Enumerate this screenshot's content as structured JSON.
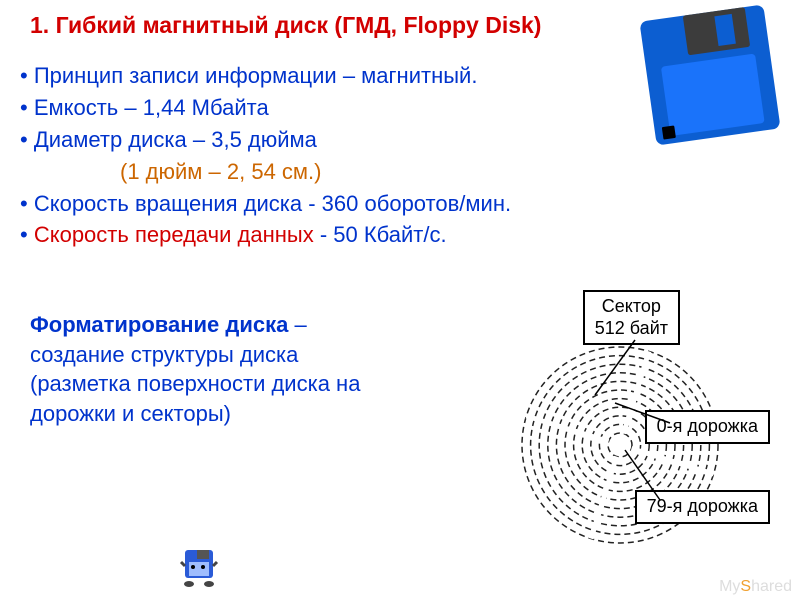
{
  "title": "1. Гибкий магнитный диск (ГМД, Floppy Disk)",
  "bullets": {
    "b1": "Принцип записи информации – магнитный.",
    "b2": "Емкость – 1,44 Мбайта",
    "b3": "Диаметр диска – 3,5 дюйма",
    "b3_indent": "(1 дюйм – 2, 54 см.)",
    "b4": "Скорость вращения диска - 360 оборотов/мин.",
    "b5_head": "Скорость передачи данных",
    "b5_tail": " - 50 Кбайт/с."
  },
  "definition": {
    "bold": "Форматирование диска",
    "rest": " – создание структуры диска (разметка поверхности диска на дорожки и секторы)"
  },
  "diagram": {
    "sector_label_l1": "Сектор",
    "sector_label_l2": "512 байт",
    "track0_label": "0-я дорожка",
    "track79_label": "79-я дорожка",
    "tracks_count": 11,
    "outer_radius": 98,
    "inner_radius": 12,
    "stroke_color": "#222222",
    "stroke_dash": "6 4",
    "stroke_width": 1.5,
    "radial_sectors": 4
  },
  "floppy": {
    "body_color": "#0c5ed1",
    "shutter_color": "#3c3c3c",
    "label_color": "#1a73fa"
  },
  "watermark": "MyShared",
  "colors": {
    "title": "#d20000",
    "text_blue": "#0033cc",
    "text_red": "#d20000",
    "text_orange": "#cc6600",
    "background": "#ffffff"
  },
  "fontsizes": {
    "title": 23,
    "body": 22,
    "labelbox": 18
  }
}
